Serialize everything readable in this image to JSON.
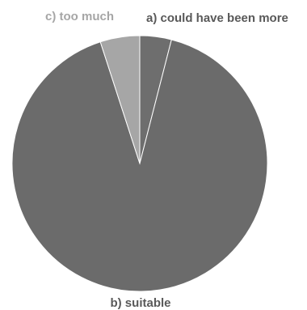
{
  "chart_data": {
    "type": "pie",
    "slices": [
      {
        "label": "a) could have been more",
        "value": 4,
        "color": "#6e6e6e",
        "label_color": "#595959"
      },
      {
        "label": "b) suitable",
        "value": 91,
        "color": "#6b6b6b",
        "label_color": "#595959"
      },
      {
        "label": "c) too much",
        "value": 5,
        "color": "#a6a6a6",
        "label_color": "#a6a6a6"
      }
    ],
    "start_angle_deg": 0,
    "direction": "clockwise",
    "legend": "none"
  }
}
